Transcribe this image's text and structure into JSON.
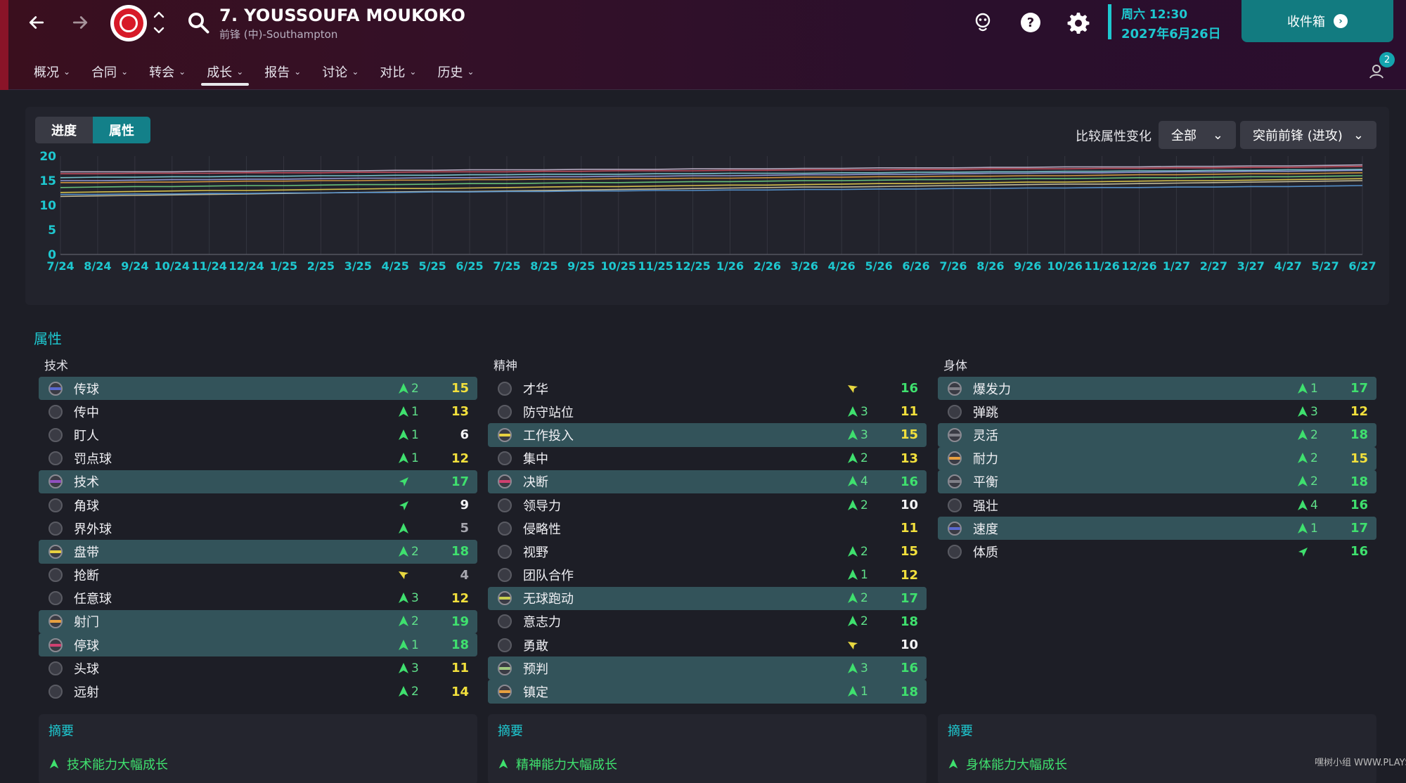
{
  "header": {
    "player_name": "7. YOUSSOUFA MOUKOKO",
    "player_sub": "前锋 (中)-Southampton",
    "day_time": "周六 12:30",
    "date": "2027年6月26日",
    "inbox_label": "收件箱",
    "notification_count": "2",
    "icons": [
      "back-arrow-icon",
      "forward-arrow-icon",
      "club-badge",
      "search-icon",
      "staff-avatar-icon",
      "help-icon",
      "gear-icon",
      "notification-icon"
    ]
  },
  "tabs": [
    {
      "label": "概况",
      "active": false
    },
    {
      "label": "合同",
      "active": false
    },
    {
      "label": "转会",
      "active": false
    },
    {
      "label": "成长",
      "active": true
    },
    {
      "label": "报告",
      "active": false
    },
    {
      "label": "讨论",
      "active": false
    },
    {
      "label": "对比",
      "active": false
    },
    {
      "label": "历史",
      "active": false
    }
  ],
  "chart_panel": {
    "segment_progress": "进度",
    "segment_attributes": "属性",
    "compare_label": "比较属性变化",
    "filter_all": "全部",
    "role_filter": "突前前锋 (进攻)"
  },
  "chart_data": {
    "type": "line",
    "title": "",
    "xlabel": "",
    "ylabel": "",
    "ylim": [
      0,
      20
    ],
    "yticks": [
      0,
      5,
      10,
      15,
      20
    ],
    "x": [
      "7/24",
      "8/24",
      "9/24",
      "10/24",
      "11/24",
      "12/24",
      "1/25",
      "2/25",
      "3/25",
      "4/25",
      "5/25",
      "6/25",
      "7/25",
      "8/25",
      "9/25",
      "10/25",
      "11/25",
      "12/25",
      "1/26",
      "2/26",
      "3/26",
      "4/26",
      "5/26",
      "6/26",
      "7/26",
      "8/26",
      "9/26",
      "10/26",
      "11/26",
      "12/26",
      "1/27",
      "2/27",
      "3/27",
      "4/27",
      "5/27",
      "6/27"
    ],
    "series": [
      {
        "color": "#c8b8d0",
        "values": [
          16.8,
          16.8,
          16.8,
          16.8,
          16.9,
          16.9,
          17.0,
          17.0,
          17.0,
          17.1,
          17.1,
          17.2,
          17.2,
          17.2,
          17.3,
          17.3,
          17.3,
          17.4,
          17.4,
          17.4,
          17.5,
          17.5,
          17.6,
          17.6,
          17.6,
          17.7,
          17.7,
          17.8,
          17.8,
          17.8,
          17.9,
          17.9,
          18.0,
          18.0,
          18.1,
          18.2
        ]
      },
      {
        "color": "#d05060",
        "values": [
          16.4,
          16.4,
          16.5,
          16.5,
          16.5,
          16.6,
          16.6,
          16.6,
          16.7,
          16.7,
          16.8,
          16.8,
          16.8,
          16.9,
          16.9,
          17.0,
          17.0,
          17.0,
          17.1,
          17.1,
          17.2,
          17.2,
          17.2,
          17.3,
          17.3,
          17.4,
          17.4,
          17.4,
          17.5,
          17.5,
          17.6,
          17.6,
          17.7,
          17.7,
          17.8,
          17.9
        ]
      },
      {
        "color": "#7fd0d8",
        "values": [
          15.6,
          15.7,
          15.7,
          15.8,
          15.8,
          15.9,
          15.9,
          16.0,
          16.0,
          16.1,
          16.1,
          16.2,
          16.2,
          16.3,
          16.3,
          16.3,
          16.4,
          16.4,
          16.5,
          16.5,
          16.5,
          16.6,
          16.6,
          16.7,
          16.7,
          16.8,
          16.8,
          16.9,
          16.9,
          17.0,
          17.0,
          17.1,
          17.1,
          17.2,
          17.2,
          17.3
        ]
      },
      {
        "color": "#9aa0e0",
        "values": [
          15.0,
          15.0,
          15.1,
          15.2,
          15.2,
          15.3,
          15.3,
          15.4,
          15.5,
          15.5,
          15.6,
          15.6,
          15.7,
          15.8,
          15.8,
          15.9,
          15.9,
          16.0,
          16.0,
          16.1,
          16.2,
          16.2,
          16.3,
          16.3,
          16.4,
          16.5,
          16.5,
          16.6,
          16.6,
          16.7,
          16.8,
          16.8,
          16.9,
          16.9,
          17.0,
          17.1
        ]
      },
      {
        "color": "#e0a040",
        "values": [
          14.6,
          14.6,
          14.7,
          14.7,
          14.8,
          14.9,
          14.9,
          15.0,
          15.0,
          15.1,
          15.1,
          15.2,
          15.2,
          15.3,
          15.3,
          15.4,
          15.4,
          15.5,
          15.5,
          15.6,
          15.7,
          15.7,
          15.8,
          15.8,
          15.9,
          15.9,
          16.0,
          16.0,
          16.1,
          16.2,
          16.2,
          16.3,
          16.4,
          16.4,
          16.5,
          16.6
        ]
      },
      {
        "color": "#70d080",
        "values": [
          13.6,
          13.7,
          13.8,
          13.8,
          13.9,
          14.0,
          14.0,
          14.1,
          14.2,
          14.2,
          14.3,
          14.4,
          14.4,
          14.5,
          14.6,
          14.6,
          14.7,
          14.8,
          14.8,
          14.9,
          15.0,
          15.0,
          15.1,
          15.2,
          15.2,
          15.3,
          15.4,
          15.4,
          15.5,
          15.6,
          15.6,
          15.7,
          15.8,
          15.8,
          15.9,
          16.0
        ]
      },
      {
        "color": "#e8d050",
        "values": [
          12.6,
          12.7,
          12.8,
          12.9,
          13.0,
          13.0,
          13.1,
          13.2,
          13.3,
          13.4,
          13.4,
          13.5,
          13.6,
          13.7,
          13.8,
          13.8,
          13.9,
          14.0,
          14.1,
          14.1,
          14.2,
          14.3,
          14.4,
          14.4,
          14.5,
          14.6,
          14.7,
          14.7,
          14.8,
          14.9,
          15.0,
          15.0,
          15.1,
          15.2,
          15.3,
          15.4
        ]
      },
      {
        "color": "#d0c8a0",
        "values": [
          11.8,
          11.9,
          12.0,
          12.1,
          12.2,
          12.3,
          12.4,
          12.5,
          12.6,
          12.7,
          12.8,
          12.8,
          12.9,
          13.0,
          13.1,
          13.2,
          13.3,
          13.4,
          13.5,
          13.6,
          13.7,
          13.7,
          13.8,
          13.9,
          14.0,
          14.1,
          14.2,
          14.3,
          14.3,
          14.4,
          14.5,
          14.6,
          14.7,
          14.8,
          14.9,
          15.0
        ]
      },
      {
        "color": "#5a9ad8",
        "values": [
          12.2,
          12.2,
          12.3,
          12.3,
          12.4,
          12.4,
          12.5,
          12.5,
          12.6,
          12.6,
          12.7,
          12.7,
          12.8,
          12.8,
          12.9,
          12.9,
          13.0,
          13.0,
          13.1,
          13.1,
          13.2,
          13.2,
          13.3,
          13.3,
          13.4,
          13.4,
          13.5,
          13.5,
          13.6,
          13.6,
          13.7,
          13.7,
          13.8,
          13.8,
          13.9,
          14.0
        ]
      }
    ]
  },
  "attributes_title": "属性",
  "columns": [
    {
      "title": "技术",
      "summary_title": "摘要",
      "summary_text": "技术能力大幅成长",
      "rows": [
        {
          "name": "传球",
          "change": "2",
          "value": "15",
          "trend": "up",
          "value_color": "yellow",
          "highlight": true,
          "band": "#5a6ad0"
        },
        {
          "name": "传中",
          "change": "1",
          "value": "13",
          "trend": "up",
          "value_color": "yellow",
          "highlight": false,
          "band": ""
        },
        {
          "name": "盯人",
          "change": "1",
          "value": "6",
          "trend": "up",
          "value_color": "white",
          "highlight": false,
          "band": ""
        },
        {
          "name": "罚点球",
          "change": "1",
          "value": "12",
          "trend": "up",
          "value_color": "yellow",
          "highlight": false,
          "band": ""
        },
        {
          "name": "技术",
          "change": "",
          "value": "17",
          "trend": "slight-up",
          "value_color": "green",
          "highlight": true,
          "band": "#9050c0"
        },
        {
          "name": "角球",
          "change": "",
          "value": "9",
          "trend": "slight-up",
          "value_color": "white",
          "highlight": false,
          "band": ""
        },
        {
          "name": "界外球",
          "change": "",
          "value": "5",
          "trend": "up",
          "value_color": "grey",
          "highlight": false,
          "band": ""
        },
        {
          "name": "盘带",
          "change": "2",
          "value": "18",
          "trend": "up",
          "value_color": "green",
          "highlight": true,
          "band": "#e8d040"
        },
        {
          "name": "抢断",
          "change": "",
          "value": "4",
          "trend": "slight-down",
          "value_color": "grey",
          "highlight": false,
          "band": ""
        },
        {
          "name": "任意球",
          "change": "3",
          "value": "12",
          "trend": "up",
          "value_color": "yellow",
          "highlight": false,
          "band": ""
        },
        {
          "name": "射门",
          "change": "2",
          "value": "19",
          "trend": "up",
          "value_color": "green",
          "highlight": true,
          "band": "#e8a040"
        },
        {
          "name": "停球",
          "change": "1",
          "value": "18",
          "trend": "up",
          "value_color": "green",
          "highlight": true,
          "band": "#d04070"
        },
        {
          "name": "头球",
          "change": "3",
          "value": "11",
          "trend": "up",
          "value_color": "yellow",
          "highlight": false,
          "band": ""
        },
        {
          "name": "远射",
          "change": "2",
          "value": "14",
          "trend": "up",
          "value_color": "yellow",
          "highlight": false,
          "band": ""
        }
      ]
    },
    {
      "title": "精神",
      "summary_title": "摘要",
      "summary_text": "精神能力大幅成长",
      "rows": [
        {
          "name": "才华",
          "change": "",
          "value": "16",
          "trend": "slight-down",
          "value_color": "green",
          "highlight": false,
          "band": ""
        },
        {
          "name": "防守站位",
          "change": "3",
          "value": "11",
          "trend": "up",
          "value_color": "yellow",
          "highlight": false,
          "band": ""
        },
        {
          "name": "工作投入",
          "change": "3",
          "value": "15",
          "trend": "up",
          "value_color": "yellow",
          "highlight": true,
          "band": "#e8d040"
        },
        {
          "name": "集中",
          "change": "2",
          "value": "13",
          "trend": "up",
          "value_color": "yellow",
          "highlight": false,
          "band": ""
        },
        {
          "name": "决断",
          "change": "4",
          "value": "16",
          "trend": "up",
          "value_color": "green",
          "highlight": true,
          "band": "#d04070"
        },
        {
          "name": "领导力",
          "change": "2",
          "value": "10",
          "trend": "up",
          "value_color": "white",
          "highlight": false,
          "band": ""
        },
        {
          "name": "侵略性",
          "change": "",
          "value": "11",
          "trend": "none",
          "value_color": "yellow",
          "highlight": false,
          "band": ""
        },
        {
          "name": "视野",
          "change": "2",
          "value": "15",
          "trend": "up",
          "value_color": "yellow",
          "highlight": false,
          "band": ""
        },
        {
          "name": "团队合作",
          "change": "1",
          "value": "12",
          "trend": "up",
          "value_color": "yellow",
          "highlight": false,
          "band": ""
        },
        {
          "name": "无球跑动",
          "change": "2",
          "value": "17",
          "trend": "up",
          "value_color": "green",
          "highlight": true,
          "band": "#c8d050"
        },
        {
          "name": "意志力",
          "change": "2",
          "value": "18",
          "trend": "up",
          "value_color": "green",
          "highlight": false,
          "band": ""
        },
        {
          "name": "勇敢",
          "change": "",
          "value": "10",
          "trend": "slight-down",
          "value_color": "white",
          "highlight": false,
          "band": ""
        },
        {
          "name": "预判",
          "change": "3",
          "value": "16",
          "trend": "up",
          "value_color": "green",
          "highlight": true,
          "band": "#a0c880"
        },
        {
          "name": "镇定",
          "change": "1",
          "value": "18",
          "trend": "up",
          "value_color": "green",
          "highlight": true,
          "band": "#e8a040"
        }
      ]
    },
    {
      "title": "身体",
      "summary_title": "摘要",
      "summary_text": "身体能力大幅成长",
      "rows": [
        {
          "name": "爆发力",
          "change": "1",
          "value": "17",
          "trend": "up",
          "value_color": "green",
          "highlight": true,
          "band": "#808088"
        },
        {
          "name": "弹跳",
          "change": "3",
          "value": "12",
          "trend": "up",
          "value_color": "yellow",
          "highlight": false,
          "band": ""
        },
        {
          "name": "灵活",
          "change": "2",
          "value": "18",
          "trend": "up",
          "value_color": "green",
          "highlight": true,
          "band": "#808088"
        },
        {
          "name": "耐力",
          "change": "2",
          "value": "15",
          "trend": "up",
          "value_color": "yellow",
          "highlight": true,
          "band": "#e8a040"
        },
        {
          "name": "平衡",
          "change": "2",
          "value": "18",
          "trend": "up",
          "value_color": "green",
          "highlight": true,
          "band": "#808088"
        },
        {
          "name": "强壮",
          "change": "4",
          "value": "16",
          "trend": "up",
          "value_color": "green",
          "highlight": false,
          "band": ""
        },
        {
          "name": "速度",
          "change": "1",
          "value": "17",
          "trend": "up",
          "value_color": "green",
          "highlight": true,
          "band": "#5a6ad0"
        },
        {
          "name": "体质",
          "change": "",
          "value": "16",
          "trend": "slight-up",
          "value_color": "green",
          "highlight": false,
          "band": ""
        }
      ]
    }
  ],
  "watermark": "嘿树小组 WWW.PLAYSM.CC",
  "colors": {
    "accent": "#1ec8d0",
    "highlight_row": "#33535a",
    "value_yellow": "#f2e03c",
    "value_green": "#3fe06e",
    "arrow_green": "#3fe06e",
    "arrow_yellow": "#e8d840"
  }
}
